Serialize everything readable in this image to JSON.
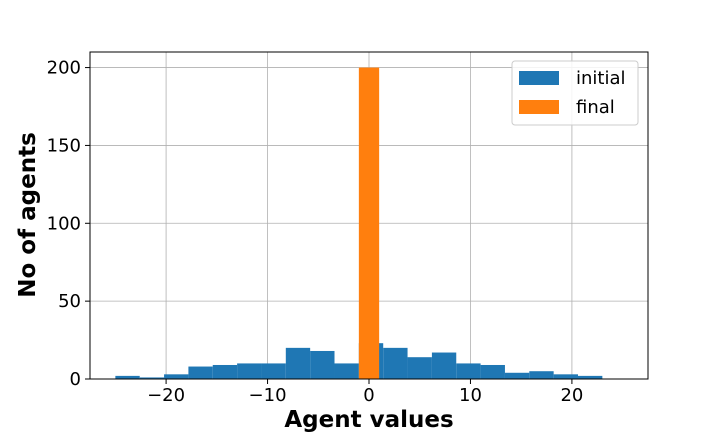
{
  "chart_data": {
    "type": "bar",
    "title": "",
    "xlabel": "Agent values",
    "ylabel": "No of agents",
    "xlim": [
      -27.5,
      27.5
    ],
    "ylim": [
      0,
      210
    ],
    "xticks": [
      -20,
      -10,
      0,
      10,
      20
    ],
    "yticks": [
      0,
      50,
      100,
      150,
      200
    ],
    "xtick_labels": [
      "−20",
      "−10",
      "0",
      "10",
      "20"
    ],
    "ytick_labels": [
      "0",
      "50",
      "100",
      "150",
      "200"
    ],
    "grid": true,
    "legend_position": "top-right",
    "series": [
      {
        "name": "initial",
        "color": "#1f77b4",
        "bin_edges": [
          -25,
          -22.6,
          -20.2,
          -17.8,
          -15.4,
          -13,
          -10.6,
          -8.2,
          -5.8,
          -3.4,
          -1,
          1.4,
          3.8,
          6.2,
          8.6,
          11,
          13.4,
          15.8,
          18.2,
          20.6,
          23
        ],
        "counts": [
          2,
          1,
          3,
          8,
          9,
          10,
          10,
          20,
          18,
          10,
          23,
          20,
          14,
          17,
          10,
          9,
          4,
          5,
          3,
          2
        ]
      },
      {
        "name": "final",
        "color": "#ff7f0e",
        "bin_edges": [
          -1,
          1
        ],
        "counts": [
          200
        ]
      }
    ]
  }
}
